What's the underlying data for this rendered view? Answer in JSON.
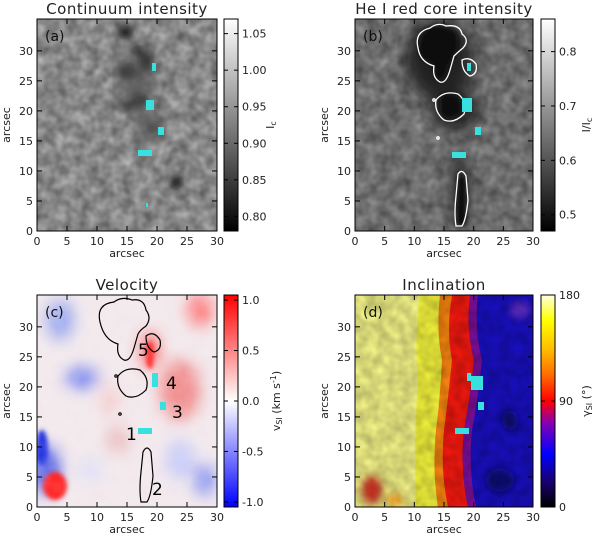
{
  "panels": [
    {
      "key": "a",
      "title": "Continuum intensity",
      "label": "(a)",
      "xlabel": "arcsec",
      "ylabel": "arcsec",
      "xticks": [
        "0",
        "5",
        "10",
        "15",
        "20",
        "25",
        "30"
      ],
      "yticks": [
        "0",
        "5",
        "10",
        "15",
        "20",
        "25",
        "30"
      ],
      "colorbar": {
        "scheme": "gray",
        "ticks": [
          "0.80",
          "0.85",
          "0.90",
          "0.95",
          "1.00",
          "1.05"
        ],
        "label": "I_c",
        "range": [
          0.78,
          1.07
        ]
      }
    },
    {
      "key": "b",
      "title": "He I red core intensity",
      "label": "(b)",
      "xlabel": "arcsec",
      "ylabel": "arcsec",
      "xticks": [
        "0",
        "5",
        "10",
        "15",
        "20",
        "25",
        "30"
      ],
      "yticks": [
        "0",
        "5",
        "10",
        "15",
        "20",
        "25",
        "30"
      ],
      "colorbar": {
        "scheme": "gray",
        "ticks": [
          "0.5",
          "0.6",
          "0.7",
          "0.8"
        ],
        "label": "I/I_c",
        "range": [
          0.47,
          0.86
        ]
      }
    },
    {
      "key": "c",
      "title": "Velocity",
      "label": "(c)",
      "xlabel": "arcsec",
      "ylabel": "arcsec",
      "xticks": [
        "0",
        "5",
        "10",
        "15",
        "20",
        "25",
        "30"
      ],
      "yticks": [
        "0",
        "5",
        "10",
        "15",
        "20",
        "25",
        "30"
      ],
      "colorbar": {
        "scheme": "bwr",
        "ticks": [
          "-1.0",
          "-0.5",
          "0.0",
          "0.5",
          "1.0"
        ],
        "label": "v_SI (km s^-1)",
        "range": [
          -1.05,
          1.05
        ]
      },
      "annotations": [
        "1",
        "2",
        "3",
        "4",
        "5"
      ]
    },
    {
      "key": "d",
      "title": "Inclination",
      "label": "(d)",
      "xlabel": "arcsec",
      "ylabel": "arcsec",
      "xticks": [
        "0",
        "5",
        "10",
        "15",
        "20",
        "25",
        "30"
      ],
      "yticks": [
        "0",
        "5",
        "10",
        "15",
        "20",
        "25",
        "30"
      ],
      "colorbar": {
        "scheme": "rainbow",
        "ticks": [
          "0",
          "90",
          "180"
        ],
        "label": "γ_SI (°)",
        "range": [
          0,
          180
        ]
      }
    }
  ],
  "colors": {
    "cyan_patch": "#38e0e0",
    "contour": "#000000",
    "contour_b": "#ffffff"
  }
}
